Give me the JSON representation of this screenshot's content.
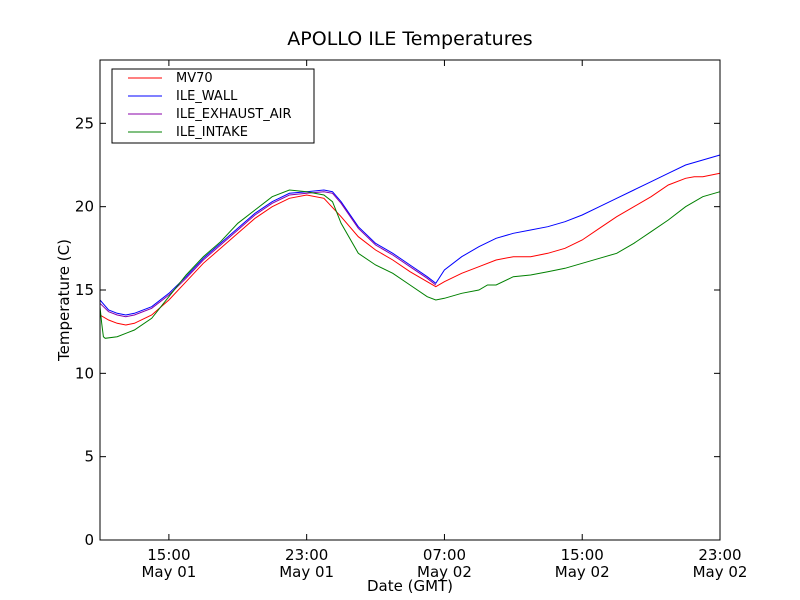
{
  "chart_data": {
    "type": "line",
    "title": "APOLLO ILE Temperatures",
    "xlabel": "Date (GMT)",
    "ylabel": "Temperature (C)",
    "x_unit": "hours since May 01 11:00 GMT",
    "xlim": [
      0,
      36
    ],
    "ylim": [
      0,
      28.8
    ],
    "grid": false,
    "legend_position": "top-left",
    "yticks": [
      0,
      5,
      10,
      15,
      20,
      25
    ],
    "xticks": [
      {
        "x": 4,
        "time": "15:00",
        "date": "May 01"
      },
      {
        "x": 12,
        "time": "23:00",
        "date": "May 01"
      },
      {
        "x": 20,
        "time": "07:00",
        "date": "May 02"
      },
      {
        "x": 28,
        "time": "15:00",
        "date": "May 02"
      },
      {
        "x": 36,
        "time": "23:00",
        "date": "May 02"
      }
    ],
    "series": [
      {
        "name": "MV70",
        "color": "#ff0000",
        "x": [
          0,
          0.5,
          1,
          1.5,
          2,
          3,
          4,
          5,
          6,
          7,
          8,
          9,
          10,
          11,
          12,
          13,
          14,
          15,
          16,
          17,
          18,
          19,
          19.5,
          20,
          21,
          22,
          23,
          24,
          25,
          26,
          27,
          28,
          29,
          30,
          31,
          32,
          33,
          34,
          34.5,
          35,
          36
        ],
        "y": [
          13.5,
          13.2,
          13.0,
          12.9,
          13.0,
          13.5,
          14.4,
          15.5,
          16.6,
          17.5,
          18.4,
          19.3,
          20.0,
          20.5,
          20.7,
          20.5,
          19.4,
          18.2,
          17.4,
          16.8,
          16.1,
          15.5,
          15.2,
          15.5,
          16.0,
          16.4,
          16.8,
          17.0,
          17.0,
          17.2,
          17.5,
          18.0,
          18.7,
          19.4,
          20.0,
          20.6,
          21.3,
          21.7,
          21.8,
          21.8,
          22.0
        ]
      },
      {
        "name": "ILE_WALL",
        "color": "#0000ff",
        "x": [
          0,
          0.5,
          1,
          1.5,
          2,
          3,
          4,
          5,
          6,
          7,
          8,
          9,
          10,
          11,
          12,
          13,
          13.5,
          14,
          15,
          16,
          17,
          18,
          19,
          19.5,
          20,
          21,
          22,
          23,
          24,
          25,
          26,
          27,
          28,
          29,
          30,
          31,
          32,
          33,
          34,
          35,
          36
        ],
        "y": [
          14.4,
          13.8,
          13.6,
          13.5,
          13.6,
          14.0,
          14.8,
          15.8,
          16.9,
          17.8,
          18.7,
          19.6,
          20.3,
          20.8,
          20.9,
          21.0,
          20.9,
          20.3,
          18.8,
          17.8,
          17.2,
          16.5,
          15.8,
          15.4,
          16.2,
          17.0,
          17.6,
          18.1,
          18.4,
          18.6,
          18.8,
          19.1,
          19.5,
          20.0,
          20.5,
          21.0,
          21.5,
          22.0,
          22.5,
          22.8,
          23.1
        ]
      },
      {
        "name": "ILE_EXHAUST_AIR",
        "color": "#8800aa",
        "x": [
          0,
          0.5,
          1,
          1.5,
          2,
          3,
          4,
          5,
          6,
          7,
          8,
          9,
          10,
          11,
          12,
          13,
          13.5,
          14,
          15,
          16,
          17,
          18,
          19,
          19.5
        ],
        "y": [
          14.2,
          13.7,
          13.5,
          13.4,
          13.5,
          13.9,
          14.7,
          15.7,
          16.8,
          17.7,
          18.6,
          19.5,
          20.2,
          20.7,
          20.8,
          20.9,
          20.8,
          20.2,
          18.7,
          17.7,
          17.1,
          16.4,
          15.7,
          15.3
        ]
      },
      {
        "name": "ILE_INTAKE",
        "color": "#008000",
        "x": [
          0,
          0.1,
          0.2,
          0.3,
          1,
          2,
          3,
          4,
          5,
          6,
          7,
          8,
          9,
          10,
          11,
          12,
          13,
          13.5,
          14,
          15,
          16,
          17,
          18,
          19,
          19.5,
          20,
          21,
          22,
          22.5,
          23,
          24,
          25,
          26,
          27,
          28,
          29,
          30,
          31,
          32,
          33,
          34,
          35,
          36
        ],
        "y": [
          14.0,
          13.0,
          12.2,
          12.1,
          12.2,
          12.6,
          13.3,
          14.6,
          15.9,
          17.0,
          17.9,
          19.0,
          19.8,
          20.6,
          21.0,
          20.9,
          20.7,
          20.3,
          19.0,
          17.2,
          16.5,
          16.0,
          15.3,
          14.6,
          14.4,
          14.5,
          14.8,
          15.0,
          15.3,
          15.3,
          15.8,
          15.9,
          16.1,
          16.3,
          16.6,
          16.9,
          17.2,
          17.8,
          18.5,
          19.2,
          20.0,
          20.6,
          20.9
        ]
      }
    ]
  }
}
